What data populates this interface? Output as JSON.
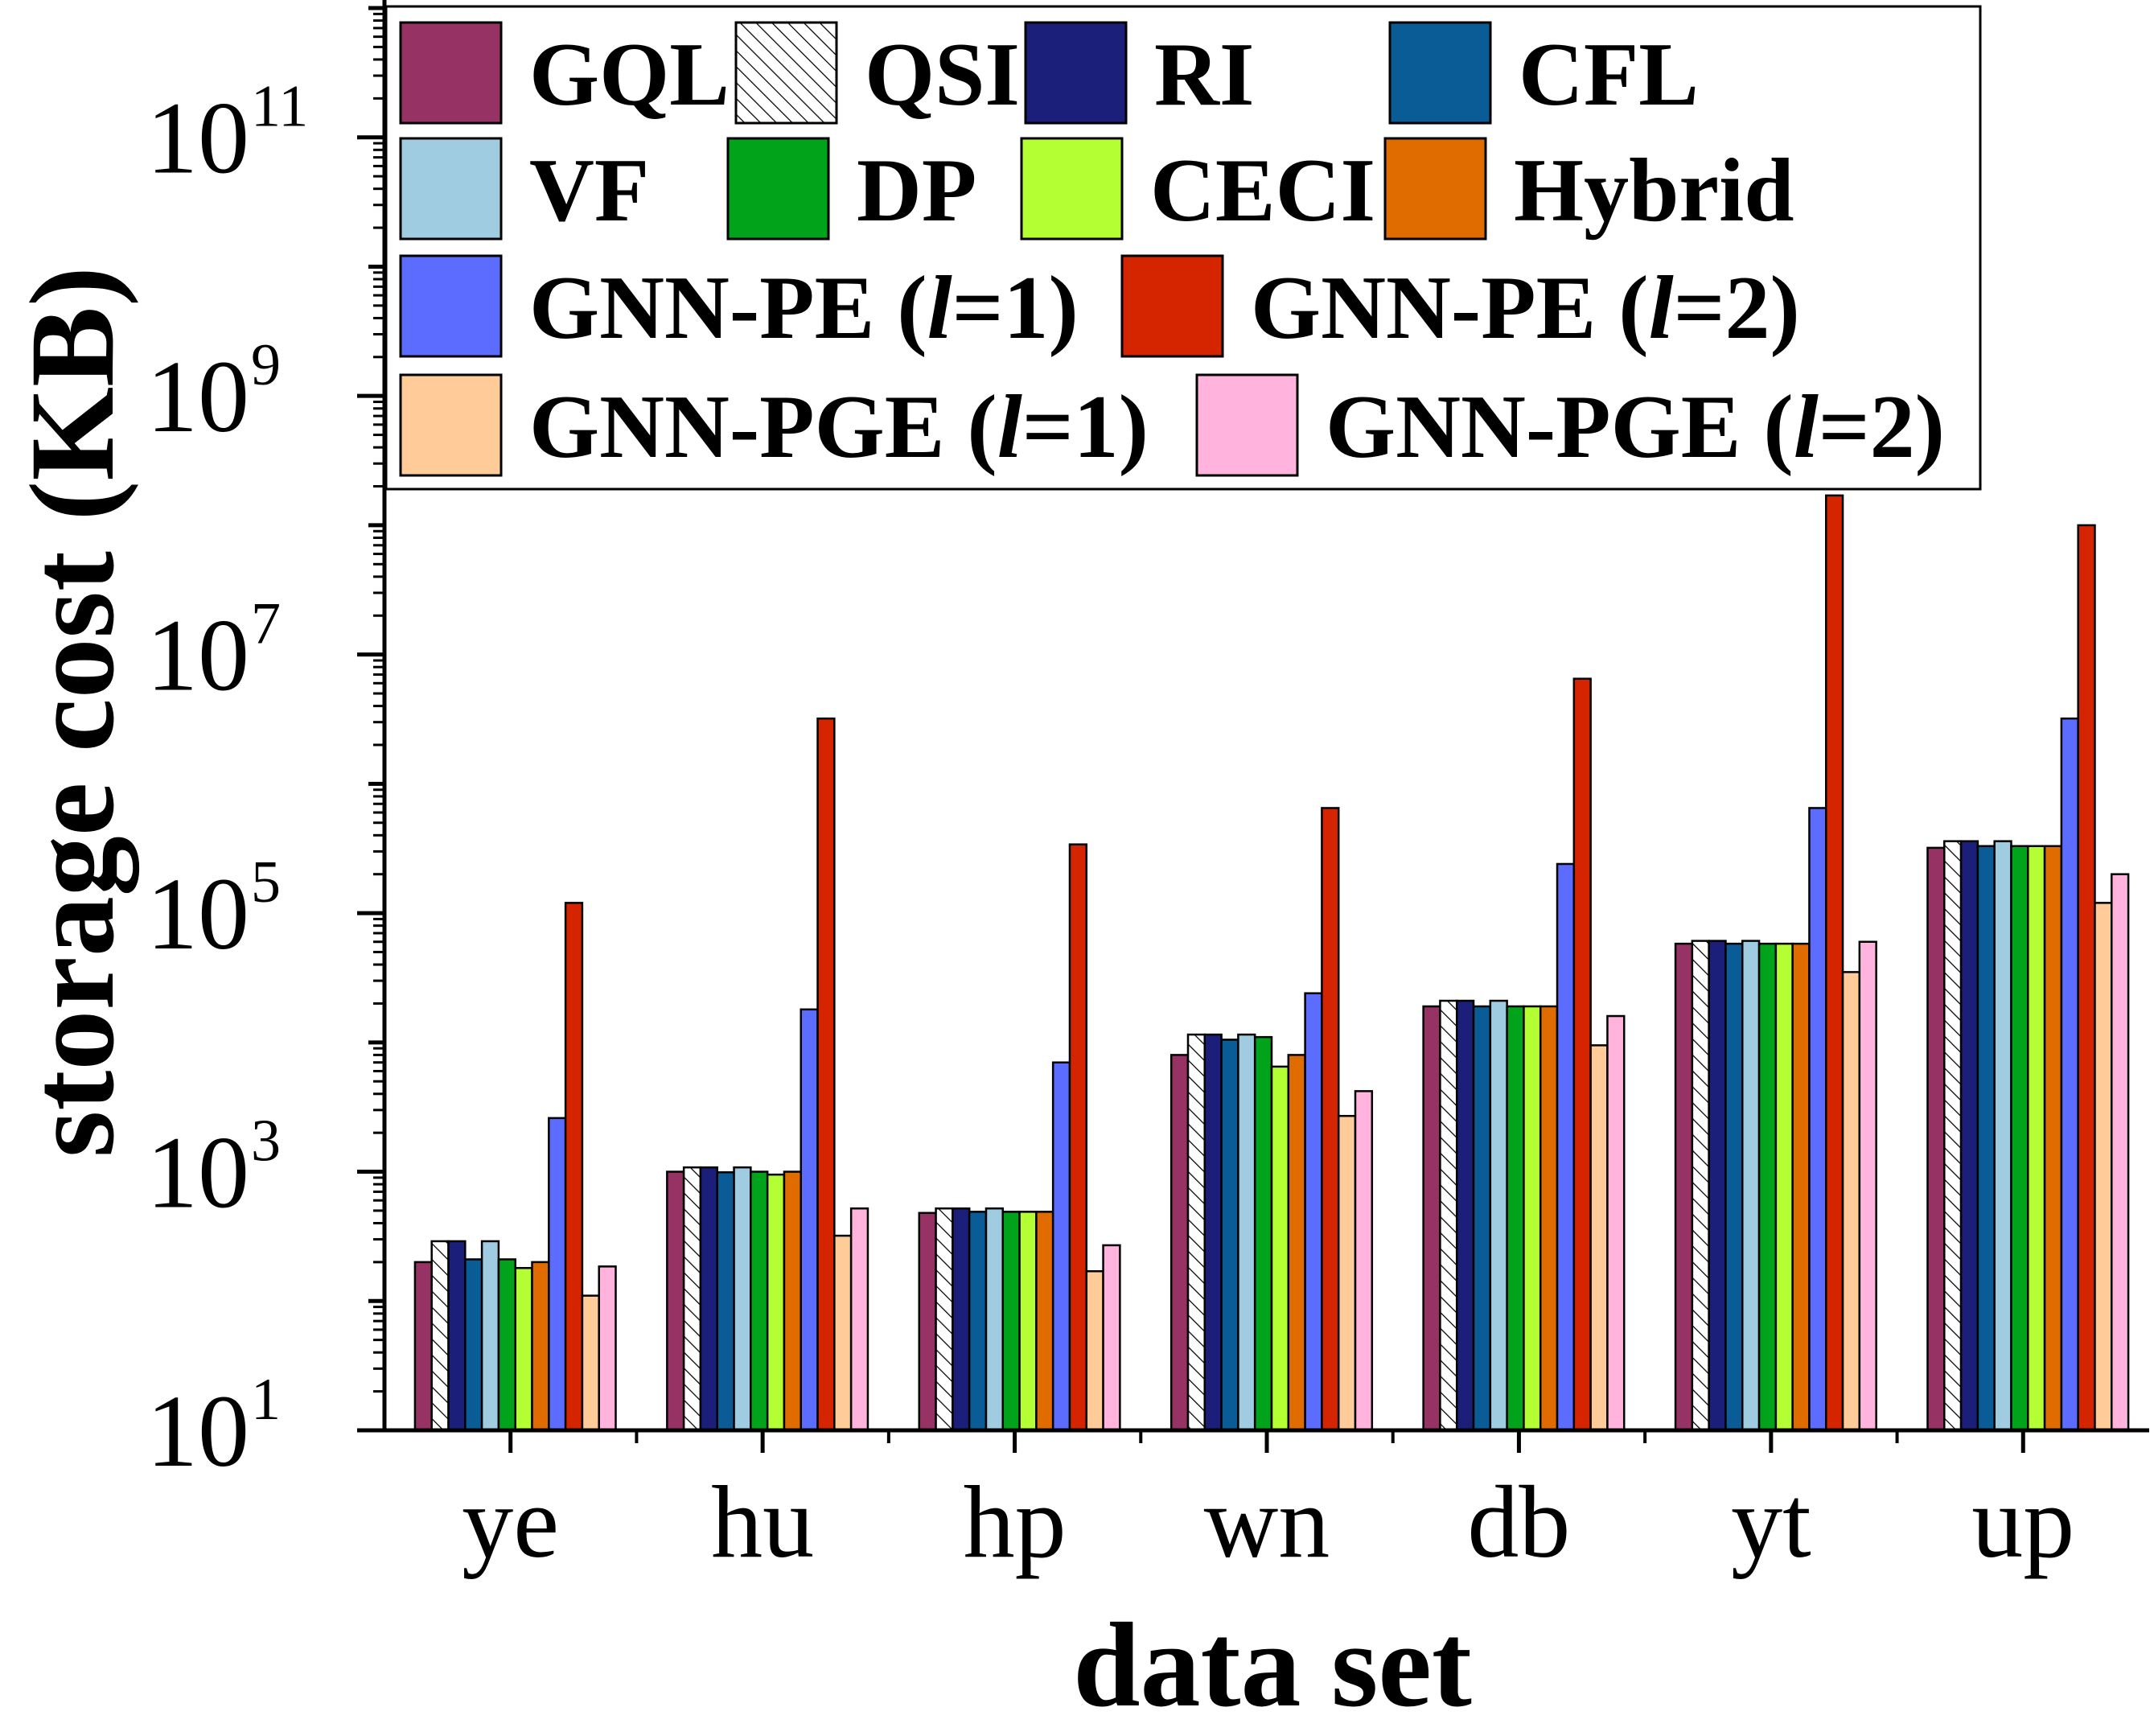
{
  "chart_data": {
    "type": "bar",
    "yscale": "log",
    "ylim": [
      10,
      1000000000000
    ],
    "xlabel": "data set",
    "ylabel": "storage cost (KB)",
    "ytick_base": "10",
    "ytick_exponents": [
      "1",
      "3",
      "5",
      "7",
      "9",
      "11"
    ],
    "categories": [
      "ye",
      "hu",
      "hp",
      "wn",
      "db",
      "yt",
      "up"
    ],
    "series": [
      {
        "name": "GQL",
        "color": "#963264",
        "pattern": "solid",
        "values": [
          200,
          1000,
          480,
          8000,
          19000,
          58000,
          320000
        ]
      },
      {
        "name": "QSI",
        "color": "#ffffff",
        "pattern": "hatch",
        "values": [
          290,
          1080,
          520,
          11500,
          21000,
          61000,
          360000
        ]
      },
      {
        "name": "RI",
        "color": "#1b1f7a",
        "pattern": "solid",
        "values": [
          290,
          1080,
          520,
          11500,
          21000,
          61000,
          360000
        ]
      },
      {
        "name": "CFL",
        "color": "#0a5c96",
        "pattern": "solid",
        "values": [
          210,
          990,
          490,
          10500,
          19000,
          58000,
          330000
        ]
      },
      {
        "name": "VF",
        "color": "#9fcce0",
        "pattern": "solid",
        "values": [
          290,
          1080,
          520,
          11500,
          21000,
          61000,
          360000
        ]
      },
      {
        "name": "DP",
        "color": "#00a31a",
        "pattern": "solid",
        "values": [
          210,
          1000,
          490,
          11000,
          19000,
          58000,
          330000
        ]
      },
      {
        "name": "CECI",
        "color": "#b3ff33",
        "pattern": "solid",
        "values": [
          180,
          950,
          490,
          6500,
          19000,
          58000,
          330000
        ]
      },
      {
        "name": "Hybrid",
        "color": "#e06c00",
        "pattern": "solid",
        "values": [
          200,
          1000,
          490,
          8000,
          19000,
          58000,
          330000
        ]
      },
      {
        "name": "GNN-PE (l=1)",
        "color": "#5c6cff",
        "pattern": "solid",
        "values": [
          2600,
          18000,
          7000,
          24000,
          240000,
          650000,
          3200000
        ]
      },
      {
        "name": "GNN-PE (l=2)",
        "color": "#d42400",
        "pattern": "solid",
        "values": [
          120000,
          3200000,
          340000,
          650000,
          6500000,
          170000000,
          100000000
        ]
      },
      {
        "name": "GNN-PGE (l=1)",
        "color": "#ffcc99",
        "pattern": "solid",
        "values": [
          110,
          320,
          170,
          2700,
          9500,
          35000,
          120000
        ]
      },
      {
        "name": "GNN-PGE (l=2)",
        "color": "#ffb3dd",
        "pattern": "solid",
        "values": [
          185,
          520,
          270,
          4200,
          16000,
          60000,
          200000
        ]
      }
    ],
    "legend": {
      "position": "top",
      "rows": [
        [
          {
            "label": "GQL",
            "series": 0
          },
          {
            "label": "QSI",
            "series": 1
          },
          {
            "label": "RI",
            "series": 2
          },
          {
            "label": "CFL",
            "series": 3
          }
        ],
        [
          {
            "label": "VF",
            "series": 4
          },
          {
            "label": "DP",
            "series": 5
          },
          {
            "label": "CECI",
            "series": 6
          },
          {
            "label": "Hybrid",
            "series": 7
          }
        ],
        [
          {
            "label": "GNN-PE (",
            "label_italic": "l",
            "label_tail": "=1)",
            "series": 8
          },
          {
            "label": "GNN-PE (",
            "label_italic": "l",
            "label_tail": "=2)",
            "series": 9
          }
        ],
        [
          {
            "label": "GNN-PGE (",
            "label_italic": "l",
            "label_tail": "=1)",
            "series": 10
          },
          {
            "label": "GNN-PGE (",
            "label_italic": "l",
            "label_tail": "=2)",
            "series": 11
          }
        ]
      ]
    }
  }
}
